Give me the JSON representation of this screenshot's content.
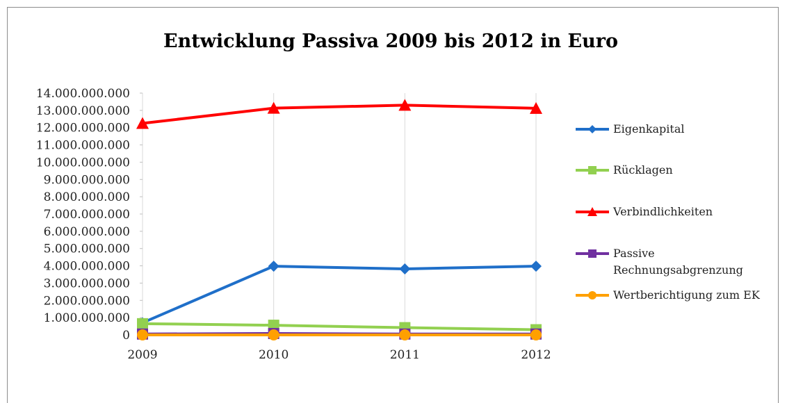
{
  "chart_data": {
    "type": "line",
    "title": "Entwicklung Passiva 2009 bis 2012 in Euro",
    "categories": [
      "2009",
      "2010",
      "2011",
      "2012"
    ],
    "ylim": [
      0,
      14000000000
    ],
    "yticks": [
      "0",
      "1.000.000.000",
      "2.000.000.000",
      "3.000.000.000",
      "4.000.000.000",
      "5.000.000.000",
      "6.000.000.000",
      "7.000.000.000",
      "8.000.000.000",
      "9.000.000.000",
      "10.000.000.000",
      "11.000.000.000",
      "12.000.000.000",
      "13.000.000.000",
      "14.000.000.000"
    ],
    "grid": "vertical",
    "legend": "right",
    "series": [
      {
        "name": "Eigenkapital",
        "values": [
          700000000,
          3980000000,
          3820000000,
          3980000000
        ],
        "color": "#1f6fc9",
        "marker": "diamond"
      },
      {
        "name": "Rücklagen",
        "values": [
          650000000,
          560000000,
          420000000,
          300000000
        ],
        "color": "#92d050",
        "marker": "square"
      },
      {
        "name": "Verbindlichkeiten",
        "values": [
          12250000000,
          13130000000,
          13300000000,
          13120000000
        ],
        "color": "#ff0000",
        "marker": "triangle"
      },
      {
        "name": [
          "Passive",
          "Rechnungsabgrenzung"
        ],
        "values": [
          50000000,
          80000000,
          50000000,
          50000000
        ],
        "color": "#7030a0",
        "marker": "square"
      },
      {
        "name": "Wertberichtigung zum EK",
        "values": [
          0,
          0,
          0,
          0
        ],
        "color": "#ffa000",
        "marker": "circle"
      }
    ]
  }
}
